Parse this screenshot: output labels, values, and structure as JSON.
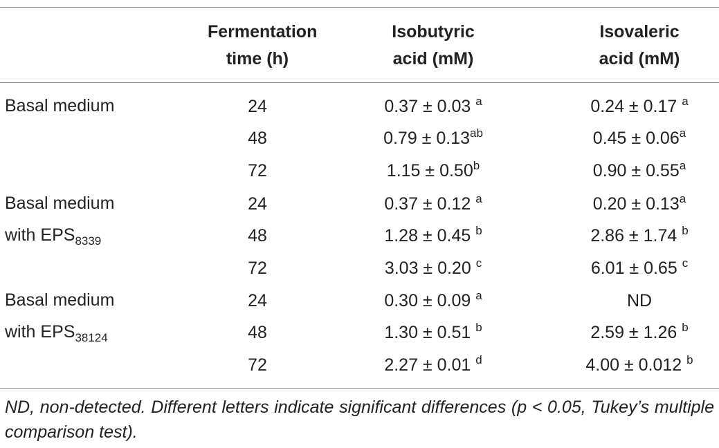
{
  "table": {
    "headers": {
      "time_line1": "Fermentation",
      "time_line2": "time (h)",
      "isobutyric_line1": "Isobutyric",
      "isobutyric_line2": "acid (mM)",
      "isovaleric_line1": "Isovaleric",
      "isovaleric_line2": "acid (mM)"
    },
    "groups": [
      {
        "line1": "Basal medium",
        "line2_prefix": "",
        "line2_sub": ""
      },
      {
        "line1": "Basal medium",
        "line2_prefix": "with EPS",
        "line2_sub": "8339"
      },
      {
        "line1": "Basal medium",
        "line2_prefix": "with EPS",
        "line2_sub": "38124"
      }
    ],
    "rows": [
      {
        "time": "24",
        "isobutyric": "0.37 ± 0.03 ",
        "isobutyric_sup": "a",
        "isovaleric": "0.24 ± 0.17 ",
        "isovaleric_sup": "a"
      },
      {
        "time": "48",
        "isobutyric": "0.79 ± 0.13",
        "isobutyric_sup": "ab",
        "isovaleric": "0.45 ± 0.06",
        "isovaleric_sup": "a"
      },
      {
        "time": "72",
        "isobutyric": "1.15 ± 0.50",
        "isobutyric_sup": "b",
        "isovaleric": "0.90 ± 0.55",
        "isovaleric_sup": "a"
      },
      {
        "time": "24",
        "isobutyric": "0.37 ± 0.12 ",
        "isobutyric_sup": "a",
        "isovaleric": "0.20 ± 0.13",
        "isovaleric_sup": "a"
      },
      {
        "time": "48",
        "isobutyric": "1.28 ± 0.45 ",
        "isobutyric_sup": "b",
        "isovaleric": "2.86 ± 1.74 ",
        "isovaleric_sup": "b"
      },
      {
        "time": "72",
        "isobutyric": "3.03 ± 0.20 ",
        "isobutyric_sup": "c",
        "isovaleric": "6.01 ± 0.65 ",
        "isovaleric_sup": "c"
      },
      {
        "time": "24",
        "isobutyric": "0.30 ± 0.09 ",
        "isobutyric_sup": "a",
        "isovaleric": "ND",
        "isovaleric_sup": ""
      },
      {
        "time": "48",
        "isobutyric": "1.30 ± 0.51 ",
        "isobutyric_sup": "b",
        "isovaleric": "2.59 ± 1.26 ",
        "isovaleric_sup": "b"
      },
      {
        "time": "72",
        "isobutyric": "2.27 ± 0.01 ",
        "isobutyric_sup": "d",
        "isovaleric": "4.00 ± 0.012 ",
        "isovaleric_sup": "b"
      }
    ],
    "footnote": "ND, non-detected. Different letters indicate significant differences (p < 0.05, Tukey’s multiple comparison test)."
  }
}
